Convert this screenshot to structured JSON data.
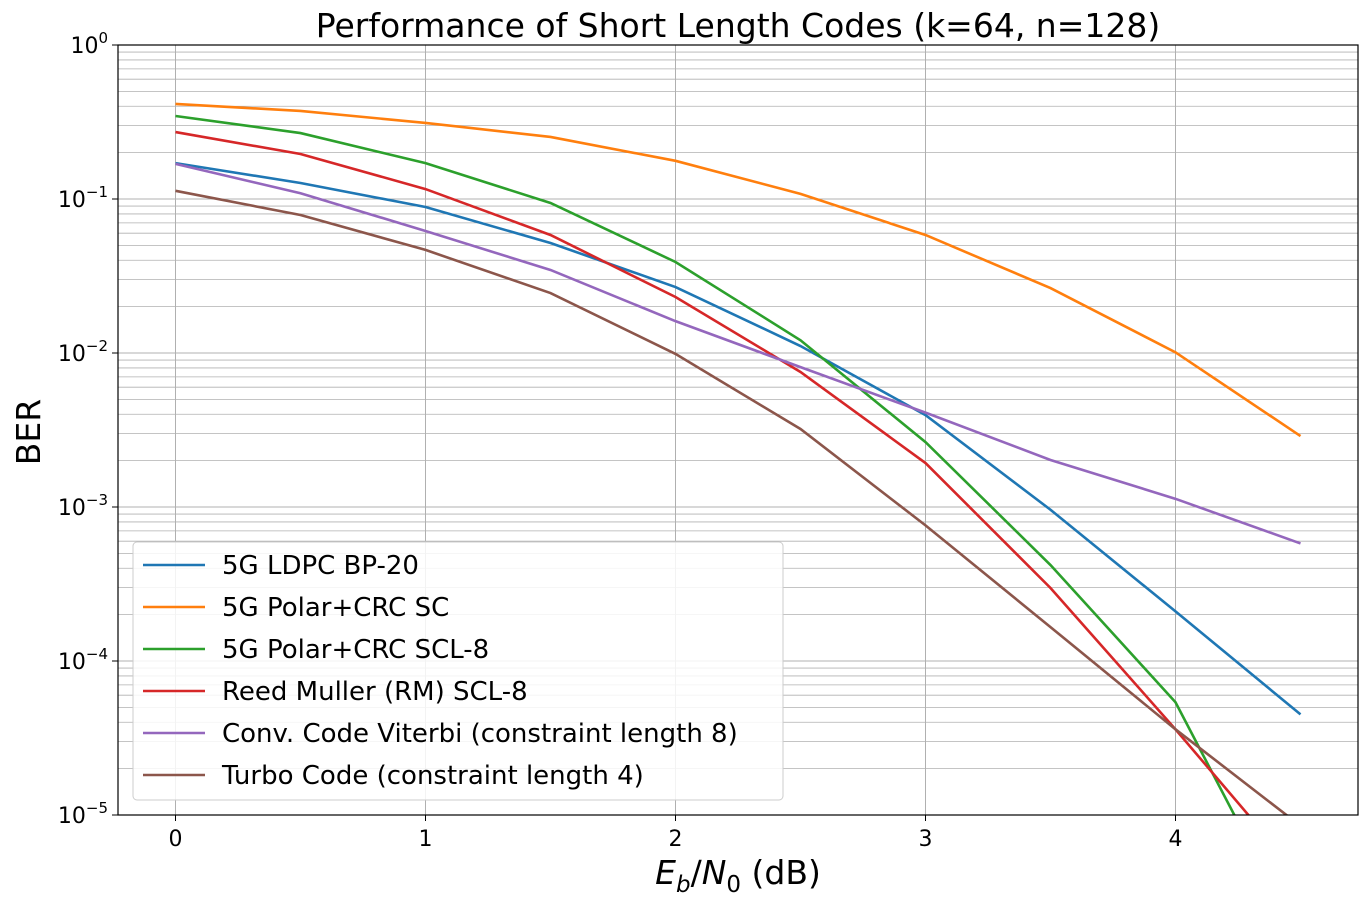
{
  "chart_data": {
    "type": "line",
    "title": "Performance of Short Length Codes (k=64, n=128)",
    "xlabel": "E_b/N_0 (dB)",
    "xlabel_parts": {
      "e": "E",
      "b": "b",
      "slash": "/",
      "n": "N",
      "zero": "0",
      "unit": " (dB)"
    },
    "ylabel": "BER",
    "yscale": "log",
    "xlim": [
      -0.23,
      4.73
    ],
    "ylim": [
      1e-05,
      1
    ],
    "grid": true,
    "legend_position": "lower-left",
    "x_ticks": [
      "0",
      "1",
      "2",
      "3",
      "4"
    ],
    "y_ticks": [
      {
        "base": "10",
        "exp": "0"
      },
      {
        "base": "10",
        "exp": "−1"
      },
      {
        "base": "10",
        "exp": "−2"
      },
      {
        "base": "10",
        "exp": "−3"
      },
      {
        "base": "10",
        "exp": "−4"
      },
      {
        "base": "10",
        "exp": "−5"
      }
    ],
    "x": [
      0,
      0.5,
      1,
      1.5,
      2,
      2.5,
      3,
      3.5,
      4,
      4.5
    ],
    "series": [
      {
        "name": "5G LDPC BP-20",
        "color": "#1f77b4",
        "values": [
          0.171,
          0.127,
          0.0887,
          0.0518,
          0.0268,
          0.0111,
          0.00395,
          0.00096,
          0.00021,
          4.5e-05
        ]
      },
      {
        "name": "5G Polar+CRC SC",
        "color": "#ff7f0e",
        "values": [
          0.414,
          0.373,
          0.312,
          0.253,
          0.177,
          0.108,
          0.0584,
          0.0264,
          0.0101,
          0.00289
        ]
      },
      {
        "name": "5G Polar+CRC SCL-8",
        "color": "#2ca02c",
        "values": [
          0.346,
          0.268,
          0.171,
          0.0942,
          0.039,
          0.0121,
          0.00264,
          0.00042,
          5.4e-05,
          1.5e-06
        ]
      },
      {
        "name": "Reed Muller (RM) SCL-8",
        "color": "#d62728",
        "values": [
          0.272,
          0.196,
          0.116,
          0.0584,
          0.0231,
          0.00753,
          0.00193,
          0.000298,
          3.6e-05,
          4e-06
        ]
      },
      {
        "name": "Conv. Code Viterbi (constraint length 8)",
        "color": "#9467bd",
        "values": [
          0.169,
          0.109,
          0.062,
          0.0346,
          0.0161,
          0.0081,
          0.0041,
          0.00202,
          0.00113,
          0.00058
        ]
      },
      {
        "name": "Turbo Code (constraint length 4)",
        "color": "#8c564b",
        "values": [
          0.113,
          0.0787,
          0.0467,
          0.0245,
          0.00986,
          0.00321,
          0.00076,
          0.000166,
          3.6e-05,
          8.5e-06
        ]
      }
    ]
  }
}
